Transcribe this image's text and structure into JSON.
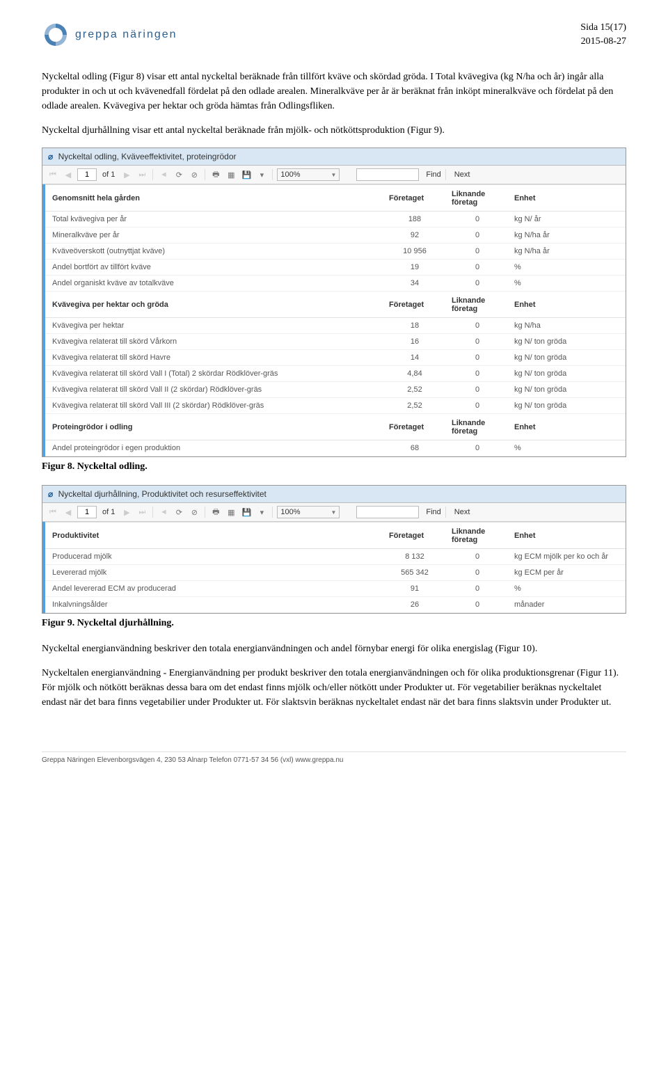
{
  "header": {
    "logo_text": "greppa näringen",
    "page_label": "Sida 15(17)",
    "date": "2015-08-27"
  },
  "paragraphs": {
    "p1": "Nyckeltal odling (Figur 8) visar ett antal nyckeltal beräknade från tillfört kväve och skördad gröda. I Total kvävegiva (kg N/ha och år) ingår alla produkter in och ut och kvävenedfall fördelat på den odlade arealen. Mineralkväve per år är beräknat från inköpt mineralkväve och fördelat på den odlade arealen. Kvävegiva per hektar och gröda hämtas från Odlingsfliken.",
    "p2": "Nyckeltal djurhållning visar ett antal nyckeltal beräknade från mjölk- och nötköttsproduktion (Figur 9).",
    "p3": "Nyckeltal energianvändning beskriver den totala energianvändningen och andel förnybar energi för olika energislag (Figur 10).",
    "p4": "Nyckeltalen energianvändning - Energianvändning per produkt beskriver den totala energianvändningen och för olika produktionsgrenar (Figur 11). För mjölk och nötkött beräknas dessa bara om det endast finns mjölk och/eller nötkött under Produkter ut. För vegetabilier beräknas nyckeltalet endast när det bara finns vegetabilier under Produkter ut. För slaktsvin beräknas nyckeltalet endast när det bara finns slaktsvin under Produkter ut."
  },
  "captions": {
    "fig8": "Figur 8. Nyckeltal odling.",
    "fig9": "Figur 9. Nyckeltal djurhållning."
  },
  "toolbar": {
    "page_value": "1",
    "of_label": "of 1",
    "zoom_value": "100%",
    "find_label": "Find",
    "next_label": "Next"
  },
  "viewer1": {
    "title": "Nyckeltal odling, Kväveeffektivitet, proteingrödor",
    "sections": [
      {
        "header": [
          "Genomsnitt hela gården",
          "Företaget",
          "Liknande företag",
          "Enhet"
        ],
        "rows": [
          [
            "Total kvävegiva per år",
            "188",
            "0",
            "kg N/ år"
          ],
          [
            "Mineralkväve per år",
            "92",
            "0",
            "kg N/ha år"
          ],
          [
            "Kväveöverskott (outnyttjat kväve)",
            "10 956",
            "0",
            "kg N/ha år"
          ],
          [
            "Andel bortfört av tillfört kväve",
            "19",
            "0",
            "%"
          ],
          [
            "Andel organiskt kväve av totalkväve",
            "34",
            "0",
            "%"
          ]
        ]
      },
      {
        "header": [
          "Kvävegiva per hektar och gröda",
          "Företaget",
          "Liknande företag",
          "Enhet"
        ],
        "rows": [
          [
            "Kvävegiva per hektar",
            "18",
            "0",
            "kg N/ha"
          ],
          [
            "Kvävegiva relaterat till skörd Vårkorn",
            "16",
            "0",
            "kg N/ ton gröda"
          ],
          [
            "Kvävegiva relaterat till skörd Havre",
            "14",
            "0",
            "kg N/ ton gröda"
          ],
          [
            "Kvävegiva relaterat till skörd Vall I (Total) 2 skördar Rödklöver-gräs",
            "4,84",
            "0",
            "kg N/ ton gröda"
          ],
          [
            "Kvävegiva relaterat till skörd Vall II (2 skördar) Rödklöver-gräs",
            "2,52",
            "0",
            "kg N/ ton gröda"
          ],
          [
            "Kvävegiva relaterat till skörd Vall III (2 skördar) Rödklöver-gräs",
            "2,52",
            "0",
            "kg N/ ton gröda"
          ]
        ]
      },
      {
        "header": [
          "Proteingrödor i odling",
          "Företaget",
          "Liknande företag",
          "Enhet"
        ],
        "rows": [
          [
            "Andel proteingrödor i egen produktion",
            "68",
            "0",
            "%"
          ]
        ]
      }
    ]
  },
  "viewer2": {
    "title": "Nyckeltal djurhållning, Produktivitet och resurseffektivitet",
    "sections": [
      {
        "header": [
          "Produktivitet",
          "Företaget",
          "Liknande företag",
          "Enhet"
        ],
        "rows": [
          [
            "Producerad mjölk",
            "8 132",
            "0",
            "kg ECM mjölk per ko och år"
          ],
          [
            "Levererad mjölk",
            "565 342",
            "0",
            "kg ECM per år"
          ],
          [
            "Andel levererad ECM av producerad",
            "91",
            "0",
            "%"
          ],
          [
            "Inkalvningsålder",
            "26",
            "0",
            "månader"
          ]
        ]
      }
    ]
  },
  "footer": {
    "text": "Greppa Näringen   Elevenborgsvägen 4, 230 53 Alnarp   Telefon 0771-57 34 56 (vxl)   www.greppa.nu"
  }
}
